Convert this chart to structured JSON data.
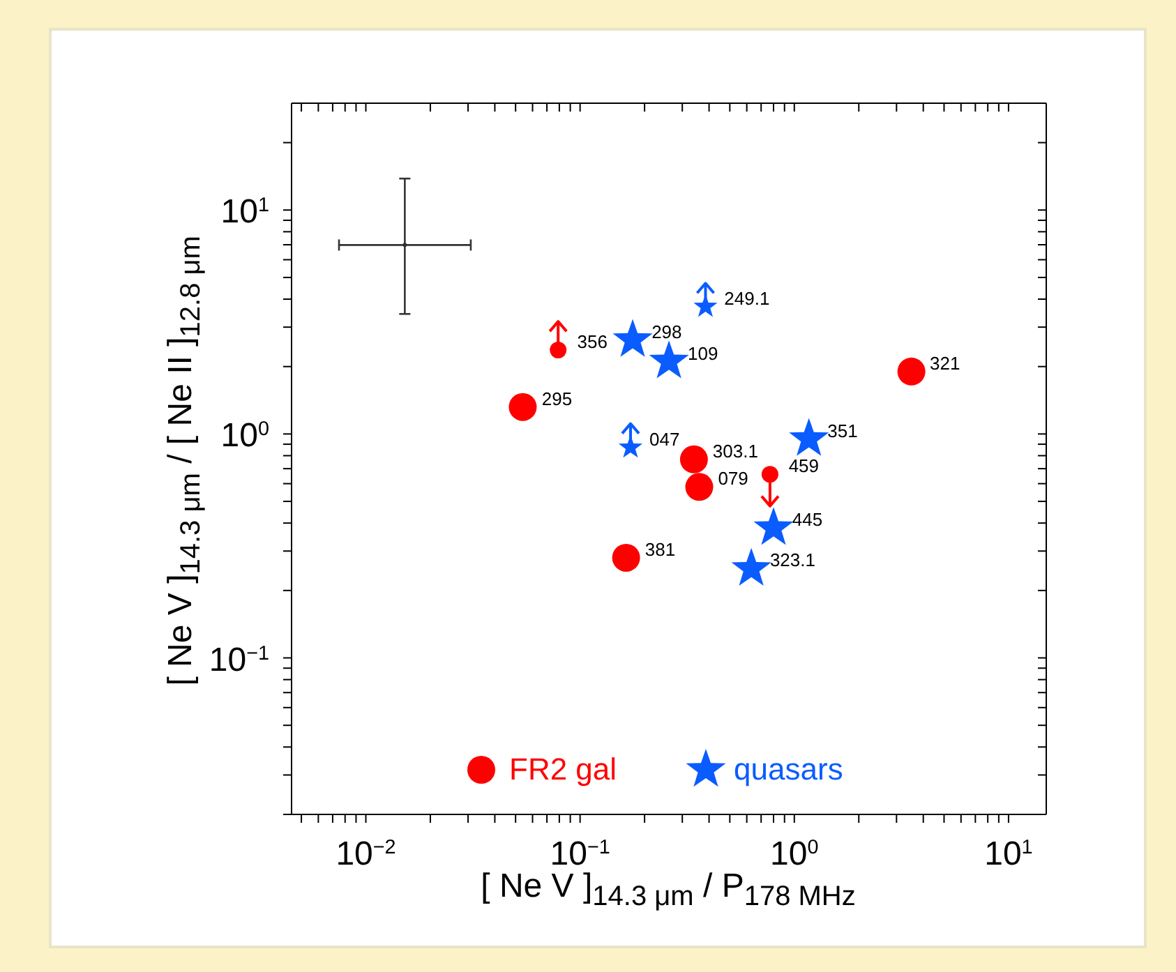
{
  "chart_data": {
    "type": "scatter",
    "xlabel": "[ Ne V ]$_{14.3 μm}$ / P$_{178 MHz}$",
    "ylabel": "[ Ne V ]$_{14.3 μm}$ / [ Ne II ]$_{12.8 μm}$",
    "log": "xy",
    "xlim": [
      0.0045,
      15
    ],
    "ylim": [
      0.02,
      30
    ],
    "xticks": [
      {
        "value": 0.005,
        "label": null
      },
      {
        "value": 0.006,
        "label": null
      },
      {
        "value": 0.007,
        "label": null
      },
      {
        "value": 0.008,
        "label": null
      },
      {
        "value": 0.009,
        "label": null
      },
      {
        "value": 0.01,
        "label": "10$^{−2}$"
      },
      {
        "value": 0.02,
        "label": null
      },
      {
        "value": 0.03,
        "label": null
      },
      {
        "value": 0.04,
        "label": null
      },
      {
        "value": 0.05,
        "label": null
      },
      {
        "value": 0.06,
        "label": null
      },
      {
        "value": 0.07,
        "label": null
      },
      {
        "value": 0.08,
        "label": null
      },
      {
        "value": 0.09,
        "label": null
      },
      {
        "value": 0.1,
        "label": "10$^{−1}$"
      },
      {
        "value": 0.2,
        "label": null
      },
      {
        "value": 0.3,
        "label": null
      },
      {
        "value": 0.4,
        "label": null
      },
      {
        "value": 0.5,
        "label": null
      },
      {
        "value": 0.6,
        "label": null
      },
      {
        "value": 0.7,
        "label": null
      },
      {
        "value": 0.8,
        "label": null
      },
      {
        "value": 0.9,
        "label": null
      },
      {
        "value": 1,
        "label": "10$^{0}$"
      },
      {
        "value": 2,
        "label": null
      },
      {
        "value": 3,
        "label": null
      },
      {
        "value": 4,
        "label": null
      },
      {
        "value": 5,
        "label": null
      },
      {
        "value": 6,
        "label": null
      },
      {
        "value": 7,
        "label": null
      },
      {
        "value": 8,
        "label": null
      },
      {
        "value": 9,
        "label": null
      },
      {
        "value": 10,
        "label": "10$^{1}$"
      }
    ],
    "yticks": [
      {
        "value": 0.02,
        "label": null
      },
      {
        "value": 0.03,
        "label": null
      },
      {
        "value": 0.04,
        "label": null
      },
      {
        "value": 0.05,
        "label": null
      },
      {
        "value": 0.06,
        "label": null
      },
      {
        "value": 0.07,
        "label": null
      },
      {
        "value": 0.08,
        "label": null
      },
      {
        "value": 0.09,
        "label": null
      },
      {
        "value": 0.1,
        "label": "10$^{−1}$"
      },
      {
        "value": 0.2,
        "label": null
      },
      {
        "value": 0.3,
        "label": null
      },
      {
        "value": 0.4,
        "label": null
      },
      {
        "value": 0.5,
        "label": null
      },
      {
        "value": 0.6,
        "label": null
      },
      {
        "value": 0.7,
        "label": null
      },
      {
        "value": 0.8,
        "label": null
      },
      {
        "value": 0.9,
        "label": null
      },
      {
        "value": 1,
        "label": "10$^{0}$"
      },
      {
        "value": 2,
        "label": null
      },
      {
        "value": 3,
        "label": null
      },
      {
        "value": 4,
        "label": null
      },
      {
        "value": 5,
        "label": null
      },
      {
        "value": 6,
        "label": null
      },
      {
        "value": 7,
        "label": null
      },
      {
        "value": 8,
        "label": null
      },
      {
        "value": 9,
        "label": null
      },
      {
        "value": 10,
        "label": "10$^{1}$"
      },
      {
        "value": 20,
        "label": null
      }
    ],
    "legend": "bottom",
    "series": [
      {
        "name": "FR2 gal",
        "color": "#ff0000",
        "marker": "circle",
        "x": [
          0.054,
          3.52,
          0.34,
          0.36,
          0.164
        ],
        "values": [
          1.32,
          1.9,
          0.77,
          0.58,
          0.28
        ]
      },
      {
        "name": "quasars",
        "color": "#0a5cff",
        "marker": "star",
        "x": [
          0.176,
          0.26,
          1.17,
          0.8,
          0.63
        ],
        "values": [
          2.63,
          2.11,
          0.95,
          0.38,
          0.25
        ]
      },
      {
        "color": "#ff0000",
        "marker": "circle",
        "x": [
          0.079,
          0.77
        ],
        "values": [
          2.37,
          0.66
        ],
        "errors": [
          [
            2.37,
            3.21
          ],
          [
            0.48,
            0.66
          ]
        ]
      },
      {
        "color": "#0a5cff",
        "marker": "star",
        "x": [
          0.385,
          0.172
        ],
        "values": [
          3.7,
          0.87
        ],
        "errors": [
          [
            3.7,
            4.76
          ],
          [
            0.87,
            1.12
          ]
        ]
      },
      {
        "color": "#333333",
        "x": [
          0.0152
        ],
        "values": [
          6.98
        ],
        "errors": [
          [
            3.47,
            14
          ]
        ],
        "xerrors": [
          [
            0.0075,
            0.031
          ]
        ]
      }
    ],
    "annotations": [
      {
        "text": "356",
        "x": 0.079,
        "y": 2.37
      },
      {
        "text": "298",
        "x": 0.176,
        "y": 2.63
      },
      {
        "text": "109",
        "x": 0.26,
        "y": 2.11
      },
      {
        "text": "249.1",
        "x": 0.385,
        "y": 3.7
      },
      {
        "text": "321",
        "x": 3.52,
        "y": 1.9
      },
      {
        "text": "295",
        "x": 0.054,
        "y": 1.32
      },
      {
        "text": "047",
        "x": 0.172,
        "y": 0.87
      },
      {
        "text": "351",
        "x": 1.17,
        "y": 0.95
      },
      {
        "text": "303.1",
        "x": 0.34,
        "y": 0.77
      },
      {
        "text": "459",
        "x": 0.77,
        "y": 0.66
      },
      {
        "text": "079",
        "x": 0.36,
        "y": 0.58
      },
      {
        "text": "445",
        "x": 0.8,
        "y": 0.38
      },
      {
        "text": "381",
        "x": 0.164,
        "y": 0.28
      },
      {
        "text": "323.1",
        "x": 0.63,
        "y": 0.25
      }
    ]
  }
}
